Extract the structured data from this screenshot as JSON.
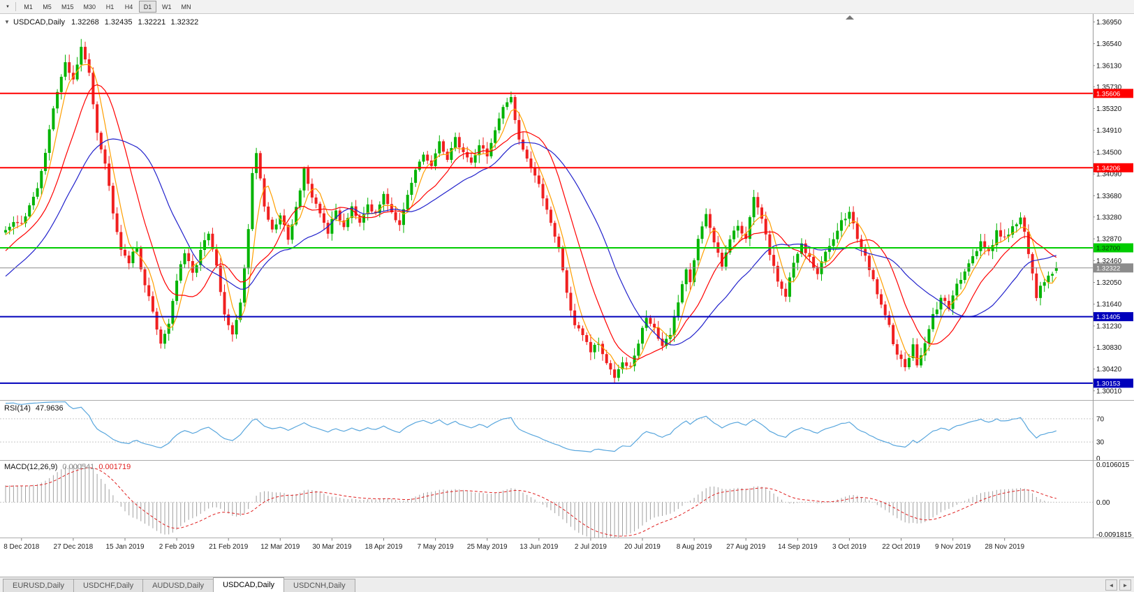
{
  "toolbar": {
    "dropdown_icon": "▼",
    "timeframes": [
      "M1",
      "M5",
      "M15",
      "M30",
      "H1",
      "H4",
      "D1",
      "W1",
      "MN"
    ],
    "active_timeframe": "D1"
  },
  "icons": {
    "title_marker": "▼",
    "tab_scroll_left": "◄",
    "tab_scroll_right": "►"
  },
  "chart_data": {
    "type": "candlestick",
    "symbol_label": "USDCAD,Daily",
    "title_ohlc": {
      "open": "1.32268",
      "high": "1.32435",
      "low": "1.32221",
      "close": "1.32322"
    },
    "ylim": [
      1.2985,
      1.371
    ],
    "colors": {
      "bull": "#00b300",
      "bear": "#f02020",
      "background": "#ffffff"
    },
    "price_axis_labels": [
      "1.36950",
      "1.36540",
      "1.36130",
      "1.35730",
      "1.35320",
      "1.34910",
      "1.34500",
      "1.34090",
      "1.33680",
      "1.33280",
      "1.32870",
      "1.32460",
      "1.32050",
      "1.31640",
      "1.31230",
      "1.30830",
      "1.30420",
      "1.30010"
    ],
    "date_labels": [
      "8 Dec 2018",
      "27 Dec 2018",
      "15 Jan 2019",
      "2 Feb 2019",
      "21 Feb 2019",
      "12 Mar 2019",
      "30 Mar 2019",
      "18 Apr 2019",
      "7 May 2019",
      "25 May 2019",
      "13 Jun 2019",
      "2 Jul 2019",
      "20 Jul 2019",
      "8 Aug 2019",
      "27 Aug 2019",
      "14 Sep 2019",
      "3 Oct 2019",
      "22 Oct 2019",
      "9 Nov 2019",
      "28 Nov 2019"
    ],
    "levels": [
      {
        "name": "resistance-upper",
        "value": "1.35606",
        "price": 1.35606,
        "color": "#ff0000",
        "text_color": "#ffffff",
        "stroke_width": 2
      },
      {
        "name": "resistance-lower",
        "value": "1.34206",
        "price": 1.34206,
        "color": "#ff0000",
        "text_color": "#ffffff",
        "stroke_width": 2
      },
      {
        "name": "pivot-green",
        "value": "1.32700",
        "price": 1.327,
        "color": "#00cc00",
        "text_color": "#073807",
        "stroke_width": 2
      },
      {
        "name": "current-bid",
        "value": "1.32322",
        "price": 1.32322,
        "color": "#8c8c8c",
        "text_color": "#ffffff",
        "stroke_width": 1
      },
      {
        "name": "support-upper",
        "value": "1.31405",
        "price": 1.31405,
        "color": "#0000bb",
        "text_color": "#ffffff",
        "stroke_width": 2
      },
      {
        "name": "support-lower",
        "value": "1.30153",
        "price": 1.30153,
        "color": "#0000bb",
        "text_color": "#ffffff",
        "stroke_width": 2
      }
    ],
    "moving_averages": [
      {
        "name": "ma-fast",
        "period": 5,
        "color": "#ff9f00"
      },
      {
        "name": "ma-mid",
        "period": 13,
        "color": "#ff0000"
      },
      {
        "name": "ma-slow",
        "period": 26,
        "color": "#2222cc"
      }
    ],
    "series": {
      "bar_count": 265,
      "first_label_bar": 4,
      "label_step": 13,
      "last_ohlc": [
        1.32268,
        1.32435,
        1.32221,
        1.32322
      ],
      "anchors": [
        [
          -64,
          1.298
        ],
        [
          -48,
          1.304
        ],
        [
          -32,
          1.311
        ],
        [
          -16,
          1.318
        ],
        [
          -8,
          1.325
        ],
        [
          -4,
          1.3285
        ],
        [
          0,
          1.3305
        ],
        [
          2,
          1.3315
        ],
        [
          4,
          1.332
        ],
        [
          6,
          1.3345
        ],
        [
          8,
          1.3385
        ],
        [
          10,
          1.345
        ],
        [
          12,
          1.353
        ],
        [
          14,
          1.359
        ],
        [
          15,
          1.362
        ],
        [
          17,
          1.3585
        ],
        [
          19,
          1.3645
        ],
        [
          21,
          1.36
        ],
        [
          23,
          1.349
        ],
        [
          25,
          1.343
        ],
        [
          27,
          1.334
        ],
        [
          29,
          1.327
        ],
        [
          31,
          1.3245
        ],
        [
          33,
          1.327
        ],
        [
          35,
          1.32
        ],
        [
          37,
          1.315
        ],
        [
          39,
          1.309
        ],
        [
          41,
          1.313
        ],
        [
          43,
          1.321
        ],
        [
          45,
          1.326
        ],
        [
          47,
          1.322
        ],
        [
          49,
          1.3265
        ],
        [
          51,
          1.3295
        ],
        [
          53,
          1.3235
        ],
        [
          55,
          1.314
        ],
        [
          57,
          1.311
        ],
        [
          59,
          1.3165
        ],
        [
          61,
          1.3305
        ],
        [
          62,
          1.3415
        ],
        [
          63,
          1.345
        ],
        [
          65,
          1.335
        ],
        [
          67,
          1.33
        ],
        [
          69,
          1.333
        ],
        [
          71,
          1.329
        ],
        [
          73,
          1.3345
        ],
        [
          75,
          1.342
        ],
        [
          77,
          1.336
        ],
        [
          79,
          1.3335
        ],
        [
          81,
          1.33
        ],
        [
          83,
          1.334
        ],
        [
          85,
          1.331
        ],
        [
          87,
          1.335
        ],
        [
          89,
          1.332
        ],
        [
          91,
          1.3355
        ],
        [
          93,
          1.333
        ],
        [
          95,
          1.3375
        ],
        [
          97,
          1.334
        ],
        [
          99,
          1.331
        ],
        [
          101,
          1.3365
        ],
        [
          103,
          1.3415
        ],
        [
          105,
          1.3445
        ],
        [
          107,
          1.3425
        ],
        [
          109,
          1.3465
        ],
        [
          111,
          1.344
        ],
        [
          113,
          1.3475
        ],
        [
          115,
          1.345
        ],
        [
          117,
          1.343
        ],
        [
          119,
          1.3465
        ],
        [
          121,
          1.3445
        ],
        [
          123,
          1.349
        ],
        [
          125,
          1.353
        ],
        [
          127,
          1.3555
        ],
        [
          129,
          1.3475
        ],
        [
          131,
          1.344
        ],
        [
          133,
          1.3405
        ],
        [
          135,
          1.3365
        ],
        [
          137,
          1.332
        ],
        [
          139,
          1.327
        ],
        [
          141,
          1.3185
        ],
        [
          143,
          1.3125
        ],
        [
          145,
          1.3105
        ],
        [
          147,
          1.3075
        ],
        [
          149,
          1.309
        ],
        [
          151,
          1.305
        ],
        [
          153,
          1.303
        ],
        [
          155,
          1.306
        ],
        [
          157,
          1.3045
        ],
        [
          159,
          1.309
        ],
        [
          161,
          1.314
        ],
        [
          163,
          1.312
        ],
        [
          165,
          1.308
        ],
        [
          167,
          1.311
        ],
        [
          169,
          1.317
        ],
        [
          171,
          1.323
        ],
        [
          172,
          1.321
        ],
        [
          174,
          1.329
        ],
        [
          176,
          1.333
        ],
        [
          178,
          1.328
        ],
        [
          180,
          1.324
        ],
        [
          182,
          1.329
        ],
        [
          184,
          1.331
        ],
        [
          186,
          1.329
        ],
        [
          188,
          1.337
        ],
        [
          190,
          1.332
        ],
        [
          192,
          1.326
        ],
        [
          194,
          1.321
        ],
        [
          196,
          1.318
        ],
        [
          198,
          1.324
        ],
        [
          200,
          1.328
        ],
        [
          202,
          1.325
        ],
        [
          204,
          1.322
        ],
        [
          206,
          1.326
        ],
        [
          208,
          1.329
        ],
        [
          210,
          1.332
        ],
        [
          212,
          1.334
        ],
        [
          214,
          1.329
        ],
        [
          216,
          1.325
        ],
        [
          218,
          1.321
        ],
        [
          220,
          1.316
        ],
        [
          222,
          1.312
        ],
        [
          224,
          1.3065
        ],
        [
          226,
          1.305
        ],
        [
          228,
          1.3085
        ],
        [
          229,
          1.305
        ],
        [
          231,
          1.309
        ],
        [
          233,
          1.314
        ],
        [
          235,
          1.3175
        ],
        [
          237,
          1.3155
        ],
        [
          239,
          1.32
        ],
        [
          241,
          1.323
        ],
        [
          243,
          1.3255
        ],
        [
          245,
          1.328
        ],
        [
          247,
          1.326
        ],
        [
          249,
          1.33
        ],
        [
          251,
          1.329
        ],
        [
          253,
          1.331
        ],
        [
          255,
          1.3325
        ],
        [
          256,
          1.33
        ],
        [
          258,
          1.322
        ],
        [
          259,
          1.3172
        ],
        [
          260,
          1.3195
        ],
        [
          262,
          1.3218
        ],
        [
          264,
          1.32322
        ]
      ]
    }
  },
  "rsi": {
    "label": "RSI(14)",
    "value": "47.9636",
    "period": 14,
    "color": "#58a6dd",
    "level_color": "#c8c8c8",
    "levels": [
      {
        "label": "70",
        "value": 70
      },
      {
        "label": "30",
        "value": 30
      }
    ],
    "zero_label": "0"
  },
  "macd": {
    "label": "MACD(12,26,9)",
    "value_main": "0.000541",
    "value_signal": "0.001719",
    "value_main_color": "#8a8a8a",
    "value_signal_color": "#e01f1f",
    "axis_labels": [
      "0.0106015",
      "0.00",
      "-0.0091815"
    ],
    "ylim": [
      -0.0091815,
      0.0106015
    ],
    "fast": 12,
    "slow": 26,
    "signal": 9,
    "hist_color": "#a0a0a0",
    "signal_color": "#e01f1f"
  },
  "tabs": {
    "items": [
      {
        "label": "EURUSD,Daily",
        "active": false
      },
      {
        "label": "USDCHF,Daily",
        "active": false
      },
      {
        "label": "AUDUSD,Daily",
        "active": false
      },
      {
        "label": "USDCAD,Daily",
        "active": true
      },
      {
        "label": "USDCNH,Daily",
        "active": false
      }
    ]
  }
}
